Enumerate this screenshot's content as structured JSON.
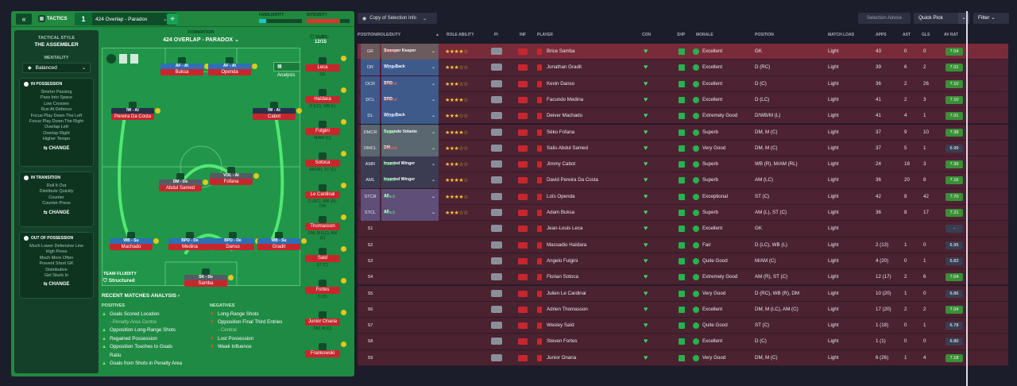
{
  "header": {
    "back": "«",
    "tactics": "TACTICS",
    "tactic_num": "1",
    "tactic_name": "424 Overlap - Paradox",
    "add": "+",
    "familiarity": "FAMILIARITY",
    "intensity": "INTENSITY"
  },
  "sidebar": {
    "style_label": "TACTICAL STYLE",
    "style_name": "THE ASSEMBLER",
    "mentality_label": "MENTALITY",
    "mentality_value": "Balanced",
    "possession": {
      "title": "IN POSSESSION",
      "items": [
        "Shorter Passing",
        "Pass Into Space",
        "Low Crosses",
        "Run At Defence",
        "Focus Play Down The Left",
        "Focus Play Down The Right",
        "Overlap Left",
        "Overlap Right",
        "Higher Tempo"
      ],
      "change": "CHANGE"
    },
    "transition": {
      "title": "IN TRANSITION",
      "items": [
        "Roll It Out",
        "Distribute Quickly",
        "Counter",
        "Counter-Press"
      ],
      "change": "CHANGE"
    },
    "out_possession": {
      "title": "OUT OF POSSESSION",
      "items": [
        "Much Lower Defensive Line",
        "High Press",
        "Much More Often",
        "Prevent Short GK",
        "Distribution",
        "Get Stuck In"
      ],
      "change": "CHANGE"
    }
  },
  "formation": {
    "label": "FORMATION",
    "name": "424 OVERLAP - PARADOX",
    "analysis": "Analysis",
    "subs_label": "SUBS:",
    "subs_value": "12/15",
    "fluidity_label": "TEAM FLUIDITY",
    "fluidity_value": "Structured"
  },
  "pitch_players": [
    {
      "role": "AF - At",
      "name": "Buksa"
    },
    {
      "role": "AF - At",
      "name": "Openda"
    },
    {
      "role": "IW - At",
      "name": "Pereira Da Costa"
    },
    {
      "role": "IW - At",
      "name": "Cabot"
    },
    {
      "role": "DM - De",
      "name": "Abdul Samed"
    },
    {
      "role": "VOL - At",
      "name": "Fofana"
    },
    {
      "role": "WB - Su",
      "name": "Machado"
    },
    {
      "role": "BPD - De",
      "name": "Medina"
    },
    {
      "role": "BPD - De",
      "name": "Danso"
    },
    {
      "role": "WB - Su",
      "name": "Gradit"
    },
    {
      "role": "SK - De",
      "name": "Samba"
    }
  ],
  "subs": [
    {
      "name": "Leca",
      "pos": "GK"
    },
    {
      "name": "Haïdara",
      "pos": "D (LC), WB (L)"
    },
    {
      "name": "Fulgini",
      "pos": "M/AM (C)"
    },
    {
      "name": "Sotoca",
      "pos": "AM (R), ST (C)"
    },
    {
      "name": "Le Cardinal",
      "pos": "D (RC), WB (R), DM"
    },
    {
      "name": "Thomasson",
      "pos": "DM, M (LC), AM (C)"
    },
    {
      "name": "Said",
      "pos": "ST (C)"
    },
    {
      "name": "Fortes",
      "pos": "D (C)"
    },
    {
      "name": "Junior Onana",
      "pos": "DM, M (C)"
    },
    {
      "name": "Frankowski",
      "pos": ""
    }
  ],
  "analysis": {
    "title": "RECENT MATCHES ANALYSIS ›",
    "positives_label": "POSITIVES",
    "positives": [
      "Goals Scored Location",
      "- Penalty Area Centre",
      "Opposition Long-Range Shots",
      "Regained Possession",
      "Opposition Touches to Goals",
      "Ratio",
      "Goals from Shots in Penalty Area"
    ],
    "negatives_label": "NEGATIVES",
    "negatives": [
      "Long-Range Shots",
      "Opposition Final Third Entries",
      "- Central",
      "Lost Possession",
      "Weak Influence"
    ]
  },
  "toolbar": {
    "copy": "Copy of Selection Info",
    "selection_advice": "Selection Advice",
    "quick_pick": "Quick Pick",
    "filter": "Filter"
  },
  "columns": {
    "position": "POSITION/ROLE/DUTY",
    "role_ability": "ROLE ABILITY",
    "pi": "PI",
    "inf": "INF",
    "player": "PLAYER",
    "con": "CON",
    "shp": "SHP",
    "morale": "MORALE",
    "pos": "POSITION",
    "load": "MATCH LOAD",
    "apps": "APPS",
    "ast": "AST",
    "gls": "GLS",
    "avrat": "AV RAT"
  },
  "rows": [
    {
      "slot": "GK",
      "role": "Sweeper Keeper",
      "duty": "Defend",
      "stars": 4,
      "player": "Brice Samba",
      "morale": "Excellent",
      "position": "GK",
      "load": "Light",
      "apps": "43",
      "ast": "0",
      "gls": "0",
      "rat": "7.04",
      "bg": "#7a2b3a"
    },
    {
      "slot": "DR",
      "role": "Wing-Back",
      "duty": "Support",
      "stars": 3,
      "player": "Jonathan Gradit",
      "morale": "Excellent",
      "position": "D (RC)",
      "load": "Light",
      "apps": "39",
      "ast": "6",
      "gls": "2",
      "rat": "7.01",
      "bg": "#4d2232"
    },
    {
      "slot": "DCR",
      "role": "BPD",
      "duty": "Defend",
      "stars": 3,
      "player": "Kevin Danso",
      "morale": "Excellent",
      "position": "D (C)",
      "load": "Light",
      "apps": "36",
      "ast": "2",
      "gls": "26",
      "rat": "7.10",
      "bg": "#4d2232"
    },
    {
      "slot": "DCL",
      "role": "BPD",
      "duty": "Defend",
      "stars": 4,
      "player": "Facundo Medina",
      "morale": "Excellent",
      "position": "D (LC)",
      "load": "Light",
      "apps": "41",
      "ast": "2",
      "gls": "3",
      "rat": "7.10",
      "bg": "#4d2232"
    },
    {
      "slot": "DL",
      "role": "Wing-Back",
      "duty": "Support",
      "stars": 3,
      "player": "Deiver Machado",
      "morale": "Extremely Good",
      "position": "D/WB/M (L)",
      "load": "Light",
      "apps": "41",
      "ast": "4",
      "gls": "1",
      "rat": "7.01",
      "bg": "#4d2232"
    },
    {
      "slot": "DMCR",
      "role": "Segundo Volante",
      "duty": "Attack",
      "stars": 4,
      "player": "Séko Fofana",
      "morale": "Superb",
      "position": "DM, M (C)",
      "load": "Light",
      "apps": "37",
      "ast": "9",
      "gls": "10",
      "rat": "7.38",
      "bg": "#4d2232"
    },
    {
      "slot": "DMCL",
      "role": "DM",
      "duty": "Defend",
      "stars": 3,
      "player": "Salis Abdul Samed",
      "morale": "Very Good",
      "position": "DM, M (C)",
      "load": "Light",
      "apps": "37",
      "ast": "5",
      "gls": "1",
      "rat": "6.99",
      "bg": "#4d2232"
    },
    {
      "slot": "AMR",
      "role": "Inverted Winger",
      "duty": "Attack",
      "stars": 3,
      "player": "Jimmy Cabot",
      "morale": "Superb",
      "position": "WB (R), M/AM (RL)",
      "load": "Light",
      "apps": "24",
      "ast": "18",
      "gls": "3",
      "rat": "7.39",
      "bg": "#4d2232"
    },
    {
      "slot": "AML",
      "role": "Inverted Winger",
      "duty": "Attack",
      "stars": 4,
      "player": "David Pereira Da Costa",
      "morale": "Superb",
      "position": "AM (LC)",
      "load": "Light",
      "apps": "36",
      "ast": "20",
      "gls": "8",
      "rat": "7.16",
      "bg": "#4d2232"
    },
    {
      "slot": "STCR",
      "role": "AF",
      "duty": "Attack",
      "stars": 4,
      "player": "Loïs Openda",
      "morale": "Exceptional",
      "position": "ST (C)",
      "load": "Light",
      "apps": "42",
      "ast": "8",
      "gls": "42",
      "rat": "7.70",
      "bg": "#4d2232"
    },
    {
      "slot": "STCL",
      "role": "AF",
      "duty": "Attack",
      "stars": 3,
      "player": "Adam Buksa",
      "morale": "Superb",
      "position": "AM (L), ST (C)",
      "load": "Light",
      "apps": "36",
      "ast": "8",
      "gls": "17",
      "rat": "7.21",
      "bg": "#4d2232"
    },
    {
      "slot": "S1",
      "role": "",
      "duty": "",
      "stars": 0,
      "player": "Jean-Louis Leca",
      "morale": "Excellent",
      "position": "GK",
      "load": "Light",
      "apps": "",
      "ast": "",
      "gls": "",
      "rat": "-",
      "bg": "#4a2230"
    },
    {
      "slot": "S2",
      "role": "",
      "duty": "",
      "stars": 0,
      "player": "Massadio Haïdara",
      "morale": "Fair",
      "position": "D (LC), WB (L)",
      "load": "Light",
      "apps": "2 (13)",
      "ast": "1",
      "gls": "0",
      "rat": "6.95",
      "bg": "#4a2230"
    },
    {
      "slot": "S3",
      "role": "",
      "duty": "",
      "stars": 0,
      "player": "Angelo Fulgini",
      "morale": "Quite Good",
      "position": "M/AM (C)",
      "load": "Light",
      "apps": "4 (20)",
      "ast": "0",
      "gls": "1",
      "rat": "6.82",
      "bg": "#4a2230"
    },
    {
      "slot": "S4",
      "role": "",
      "duty": "",
      "stars": 0,
      "player": "Florian Sotoca",
      "morale": "Extremely Good",
      "position": "AM (R), ST (C)",
      "load": "Light",
      "apps": "12 (17)",
      "ast": "2",
      "gls": "6",
      "rat": "7.04",
      "bg": "#4a2230"
    },
    {
      "slot": "S5",
      "role": "",
      "duty": "",
      "stars": 0,
      "player": "Julien Le Cardinal",
      "morale": "Very Good",
      "position": "D (RC), WB (R), DM",
      "load": "Light",
      "apps": "10 (20)",
      "ast": "1",
      "gls": "0",
      "rat": "6.86",
      "bg": "#4a2230"
    },
    {
      "slot": "S6",
      "role": "",
      "duty": "",
      "stars": 0,
      "player": "Adrien Thomasson",
      "morale": "Excellent",
      "position": "DM, M (LC), AM (C)",
      "load": "Light",
      "apps": "17 (20)",
      "ast": "2",
      "gls": "2",
      "rat": "7.04",
      "bg": "#4a2230"
    },
    {
      "slot": "S7",
      "role": "",
      "duty": "",
      "stars": 0,
      "player": "Wesley Saïd",
      "morale": "Quite Good",
      "position": "ST (C)",
      "load": "Light",
      "apps": "1 (18)",
      "ast": "0",
      "gls": "1",
      "rat": "6.78",
      "bg": "#4a2230"
    },
    {
      "slot": "S8",
      "role": "",
      "duty": "",
      "stars": 0,
      "player": "Steven Fortes",
      "morale": "Excellent",
      "position": "D (C)",
      "load": "Light",
      "apps": "1 (1)",
      "ast": "0",
      "gls": "0",
      "rat": "6.80",
      "bg": "#4a2230"
    },
    {
      "slot": "S9",
      "role": "",
      "duty": "",
      "stars": 0,
      "player": "Junior Onana",
      "morale": "Very Good",
      "position": "DM, M (C)",
      "load": "Light",
      "apps": "6 (26)",
      "ast": "1",
      "gls": "4",
      "rat": "7.18",
      "bg": "#4a2230"
    }
  ]
}
